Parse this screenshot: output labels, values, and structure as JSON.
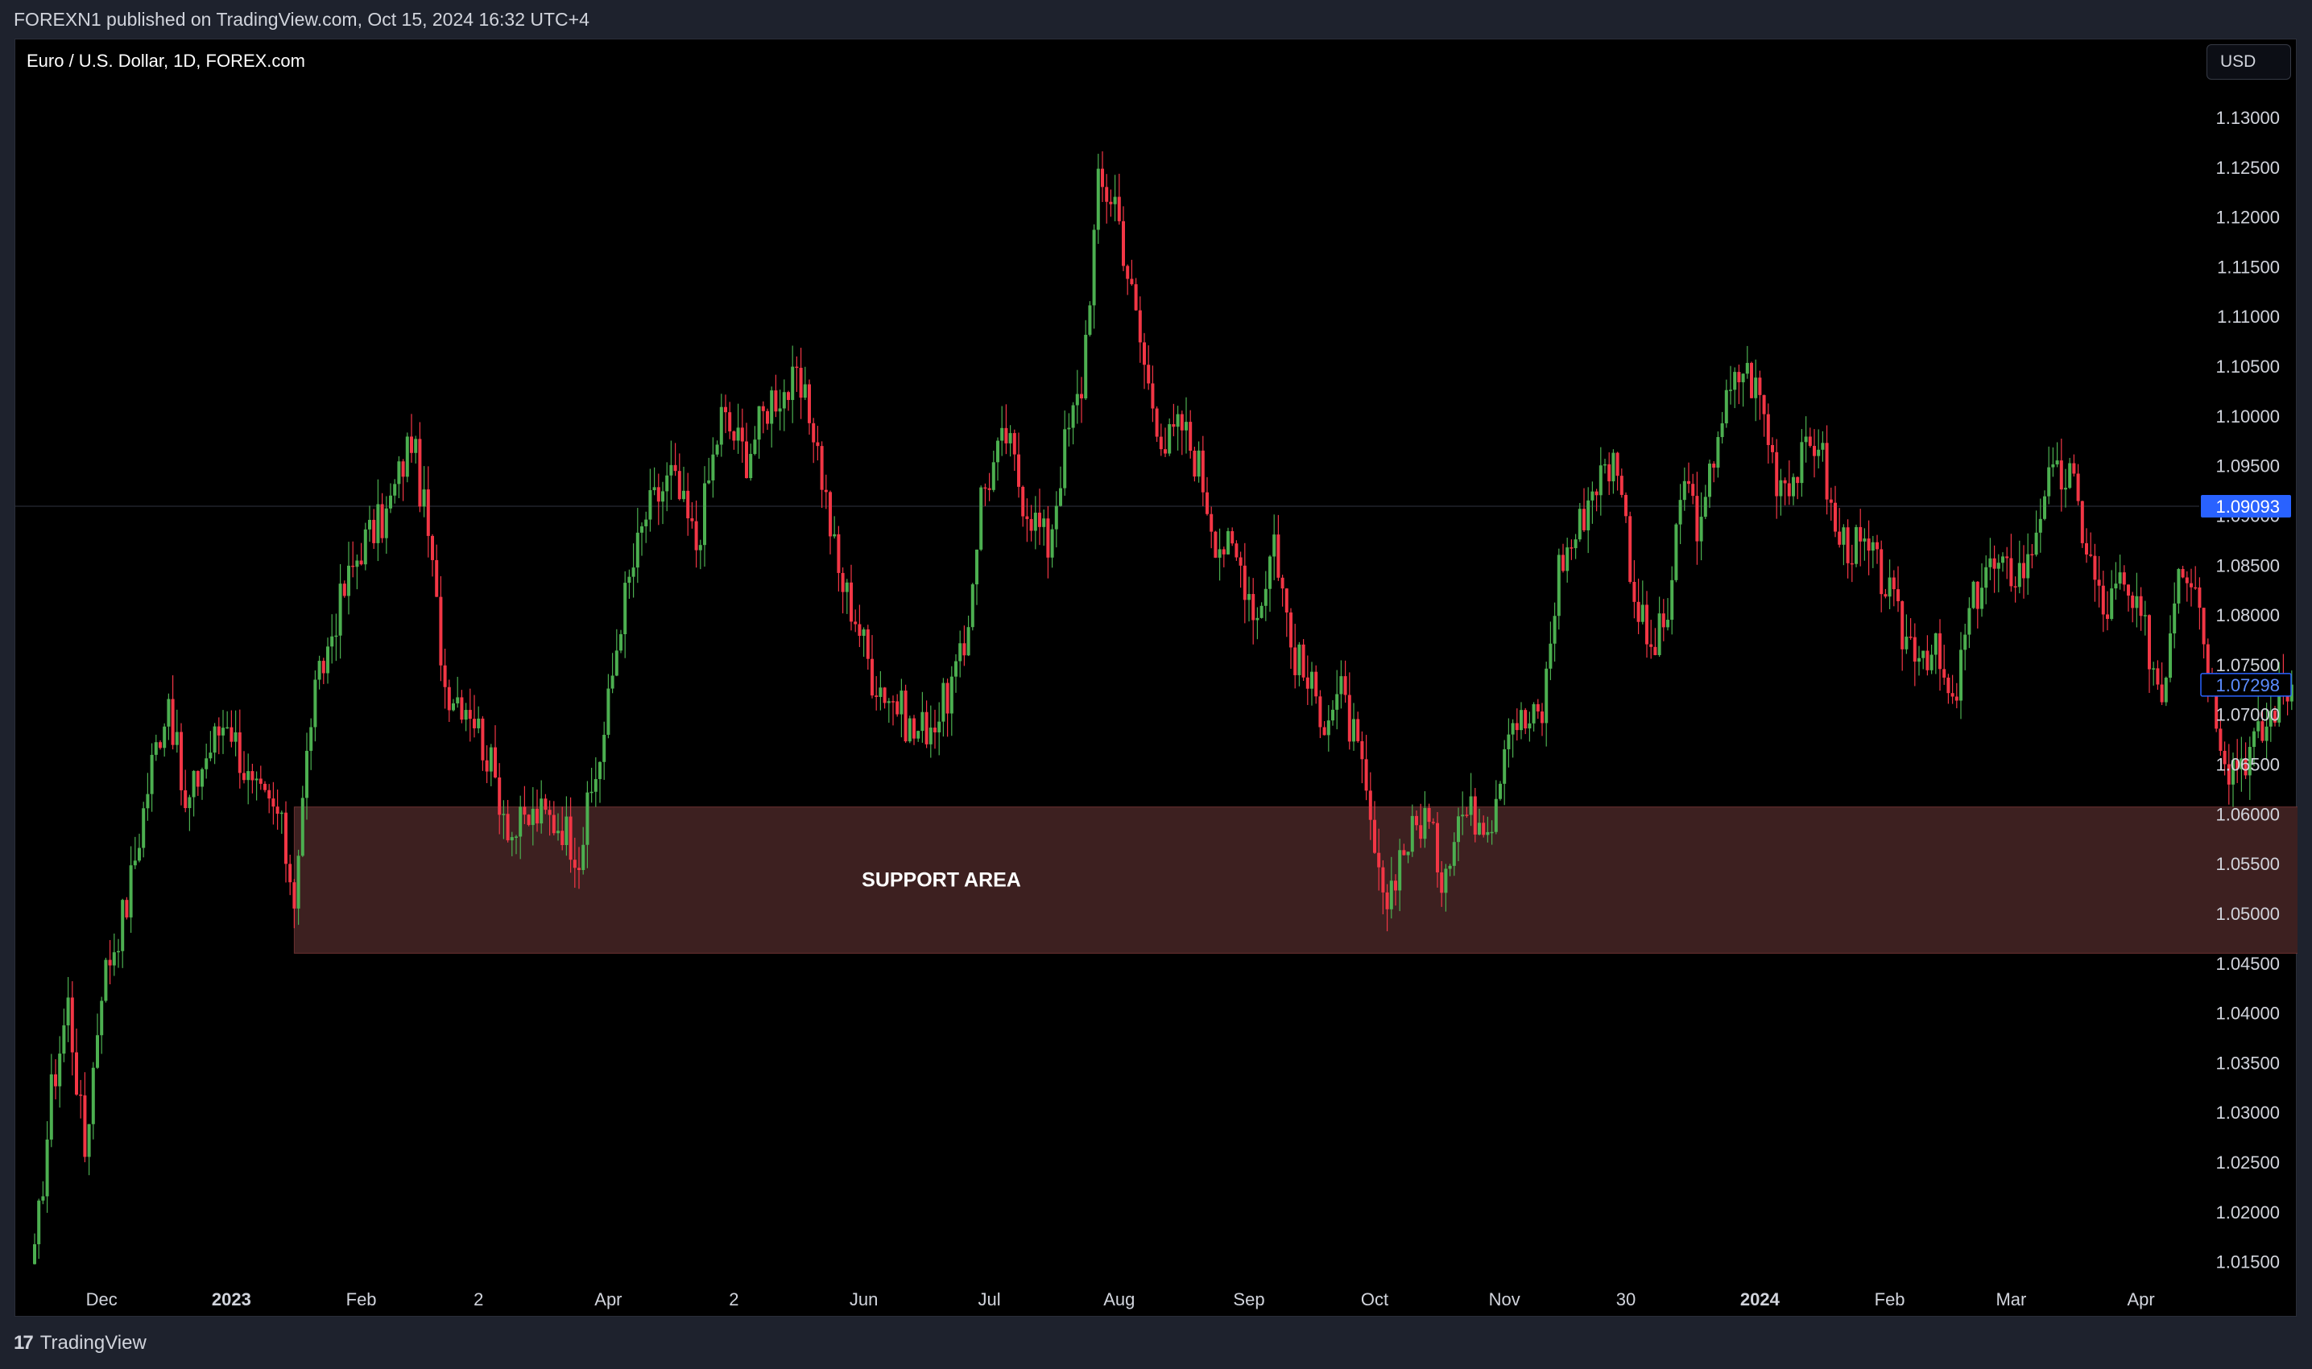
{
  "header": {
    "published_text": "FOREXN1 published on TradingView.com, Oct 15, 2024 16:32 UTC+4"
  },
  "chart": {
    "symbol_text": "Euro / U.S. Dollar, 1D, FOREX.com",
    "currency_button": "USD"
  },
  "footer": {
    "brand_logo": "17",
    "brand_name": "TradingView"
  },
  "colors": {
    "up": "#4caf50",
    "down": "#f23645",
    "background": "#000000",
    "support_fill": "#3d2020",
    "price_label_blue": "#2962ff"
  },
  "chart_data": {
    "type": "candlestick",
    "title": "Euro / U.S. Dollar, 1D, FOREX.com",
    "yaxis_ticks": [
      "1.13000",
      "1.12500",
      "1.12000",
      "1.11500",
      "1.11000",
      "1.10500",
      "1.10000",
      "1.09500",
      "1.09000",
      "1.08500",
      "1.08000",
      "1.07500",
      "1.07000",
      "1.06500",
      "1.06000",
      "1.05500",
      "1.05000",
      "1.04500",
      "1.04000",
      "1.03500",
      "1.03000",
      "1.02500",
      "1.02000",
      "1.01500"
    ],
    "ylim": [
      1.0117,
      1.133
    ],
    "xaxis_ticks": [
      {
        "label": "Dec",
        "bold": false,
        "day": 16
      },
      {
        "label": "2023",
        "bold": true,
        "day": 47
      },
      {
        "label": "Feb",
        "bold": false,
        "day": 78
      },
      {
        "label": "2",
        "bold": false,
        "day": 106
      },
      {
        "label": "Apr",
        "bold": false,
        "day": 137
      },
      {
        "label": "2",
        "bold": false,
        "day": 167
      },
      {
        "label": "Jun",
        "bold": false,
        "day": 198
      },
      {
        "label": "Jul",
        "bold": false,
        "day": 228
      },
      {
        "label": "Aug",
        "bold": false,
        "day": 259
      },
      {
        "label": "Sep",
        "bold": false,
        "day": 290
      },
      {
        "label": "Oct",
        "bold": false,
        "day": 320
      },
      {
        "label": "Nov",
        "bold": false,
        "day": 351
      },
      {
        "label": "30",
        "bold": false,
        "day": 380
      },
      {
        "label": "2024",
        "bold": true,
        "day": 412
      },
      {
        "label": "Feb",
        "bold": false,
        "day": 443
      },
      {
        "label": "Mar",
        "bold": false,
        "day": 472
      },
      {
        "label": "Apr",
        "bold": false,
        "day": 503
      }
    ],
    "current_price": "1.07298",
    "hline_price": "1.09093",
    "hline_value": 1.09093,
    "current_value": 1.07298,
    "support_zone": {
      "label": "SUPPORT AREA",
      "low": 1.046,
      "high": 1.0607,
      "from_day": 62,
      "to_day": 543
    },
    "key_points": [
      [
        0,
        1.015
      ],
      [
        4,
        1.032
      ],
      [
        8,
        1.041
      ],
      [
        12,
        1.026
      ],
      [
        16,
        1.043
      ],
      [
        22,
        1.051
      ],
      [
        28,
        1.065
      ],
      [
        32,
        1.072
      ],
      [
        36,
        1.06
      ],
      [
        40,
        1.065
      ],
      [
        46,
        1.07
      ],
      [
        52,
        1.062
      ],
      [
        58,
        1.06
      ],
      [
        62,
        1.052
      ],
      [
        66,
        1.07
      ],
      [
        72,
        1.08
      ],
      [
        78,
        1.087
      ],
      [
        84,
        1.09
      ],
      [
        90,
        1.098
      ],
      [
        94,
        1.088
      ],
      [
        98,
        1.073
      ],
      [
        104,
        1.071
      ],
      [
        108,
        1.066
      ],
      [
        114,
        1.058
      ],
      [
        120,
        1.06
      ],
      [
        126,
        1.059
      ],
      [
        130,
        1.056
      ],
      [
        136,
        1.068
      ],
      [
        140,
        1.08
      ],
      [
        146,
        1.09
      ],
      [
        152,
        1.094
      ],
      [
        158,
        1.087
      ],
      [
        164,
        1.1
      ],
      [
        170,
        1.096
      ],
      [
        176,
        1.102
      ],
      [
        182,
        1.103
      ],
      [
        186,
        1.099
      ],
      [
        192,
        1.084
      ],
      [
        196,
        1.08
      ],
      [
        200,
        1.074
      ],
      [
        206,
        1.071
      ],
      [
        210,
        1.068
      ],
      [
        216,
        1.07
      ],
      [
        222,
        1.076
      ],
      [
        226,
        1.092
      ],
      [
        232,
        1.098
      ],
      [
        236,
        1.092
      ],
      [
        242,
        1.087
      ],
      [
        246,
        1.097
      ],
      [
        250,
        1.103
      ],
      [
        254,
        1.123
      ],
      [
        258,
        1.122
      ],
      [
        262,
        1.112
      ],
      [
        266,
        1.103
      ],
      [
        270,
        1.097
      ],
      [
        274,
        1.099
      ],
      [
        278,
        1.095
      ],
      [
        282,
        1.088
      ],
      [
        288,
        1.085
      ],
      [
        292,
        1.08
      ],
      [
        296,
        1.088
      ],
      [
        300,
        1.077
      ],
      [
        304,
        1.073
      ],
      [
        308,
        1.07
      ],
      [
        312,
        1.072
      ],
      [
        316,
        1.066
      ],
      [
        320,
        1.056
      ],
      [
        322,
        1.05
      ],
      [
        326,
        1.056
      ],
      [
        332,
        1.06
      ],
      [
        336,
        1.054
      ],
      [
        340,
        1.06
      ],
      [
        344,
        1.06
      ],
      [
        348,
        1.06
      ],
      [
        352,
        1.07
      ],
      [
        356,
        1.069
      ],
      [
        360,
        1.07
      ],
      [
        364,
        1.085
      ],
      [
        368,
        1.088
      ],
      [
        372,
        1.093
      ],
      [
        378,
        1.096
      ],
      [
        382,
        1.082
      ],
      [
        386,
        1.076
      ],
      [
        390,
        1.08
      ],
      [
        394,
        1.094
      ],
      [
        398,
        1.088
      ],
      [
        402,
        1.099
      ],
      [
        408,
        1.105
      ],
      [
        412,
        1.102
      ],
      [
        416,
        1.094
      ],
      [
        420,
        1.094
      ],
      [
        426,
        1.098
      ],
      [
        430,
        1.088
      ],
      [
        434,
        1.087
      ],
      [
        438,
        1.086
      ],
      [
        442,
        1.083
      ],
      [
        446,
        1.078
      ],
      [
        450,
        1.077
      ],
      [
        454,
        1.076
      ],
      [
        458,
        1.07
      ],
      [
        462,
        1.08
      ],
      [
        466,
        1.085
      ],
      [
        470,
        1.084
      ],
      [
        476,
        1.085
      ],
      [
        480,
        1.093
      ],
      [
        486,
        1.094
      ],
      [
        490,
        1.087
      ],
      [
        494,
        1.08
      ],
      [
        498,
        1.083
      ],
      [
        504,
        1.078
      ],
      [
        508,
        1.072
      ],
      [
        512,
        1.086
      ],
      [
        516,
        1.084
      ],
      [
        520,
        1.072
      ],
      [
        524,
        1.065
      ],
      [
        528,
        1.066
      ],
      [
        532,
        1.068
      ],
      [
        536,
        1.072
      ],
      [
        539,
        1.073
      ]
    ]
  }
}
